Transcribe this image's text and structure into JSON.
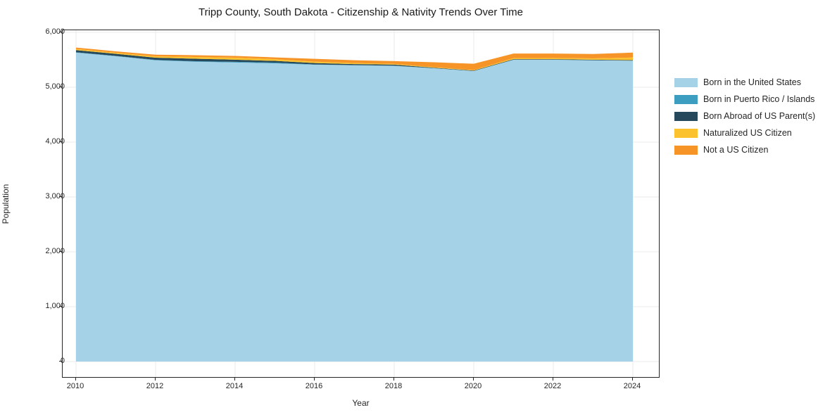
{
  "chart_data": {
    "type": "area",
    "stacked": true,
    "title": "Tripp County, South Dakota - Citizenship & Nativity Trends Over Time",
    "xlabel": "Year",
    "ylabel": "Population",
    "grid": true,
    "legend_position": "right-outside",
    "x": [
      2010,
      2011,
      2012,
      2013,
      2014,
      2015,
      2016,
      2017,
      2018,
      2019,
      2020,
      2021,
      2022,
      2023,
      2024
    ],
    "series": [
      {
        "name": "Born in the United States",
        "color": "#A6D2E7",
        "values": [
          5630,
          5565,
          5490,
          5465,
          5450,
          5435,
          5410,
          5400,
          5390,
          5345,
          5295,
          5500,
          5500,
          5490,
          5483
        ]
      },
      {
        "name": "Born in Puerto Rico / Islands",
        "color": "#3D9DC0",
        "values": [
          8,
          6,
          8,
          10,
          13,
          13,
          5,
          3,
          3,
          2,
          2,
          2,
          2,
          2,
          2
        ]
      },
      {
        "name": "Born Abroad of US Parent(s)",
        "color": "#26495C",
        "values": [
          38,
          38,
          40,
          45,
          38,
          32,
          26,
          19,
          19,
          8,
          8,
          9,
          9,
          9,
          9
        ]
      },
      {
        "name": "Naturalized US Citizen",
        "color": "#FBC22D",
        "values": [
          21,
          19,
          25,
          32,
          38,
          32,
          26,
          19,
          13,
          10,
          8,
          20,
          22,
          25,
          47
        ]
      },
      {
        "name": "Not a US Citizen",
        "color": "#F79428",
        "values": [
          26,
          26,
          30,
          32,
          32,
          32,
          51,
          51,
          51,
          90,
          115,
          82,
          80,
          80,
          90
        ]
      }
    ],
    "xticks": {
      "values": [
        2010,
        2012,
        2014,
        2016,
        2018,
        2020,
        2022,
        2024
      ],
      "labels": [
        "2010",
        "2012",
        "2014",
        "2016",
        "2018",
        "2020",
        "2022",
        "2024"
      ]
    },
    "yticks": {
      "values": [
        0,
        1000,
        2000,
        3000,
        4000,
        5000,
        6000
      ],
      "labels": [
        "0",
        "1,000",
        "2,000",
        "3,000",
        "4,000",
        "5,000",
        "6,000"
      ]
    },
    "ylim": [
      -300,
      6050
    ],
    "xlim": [
      2009.7,
      2024.7
    ],
    "grid_color": "#ebebeb"
  }
}
